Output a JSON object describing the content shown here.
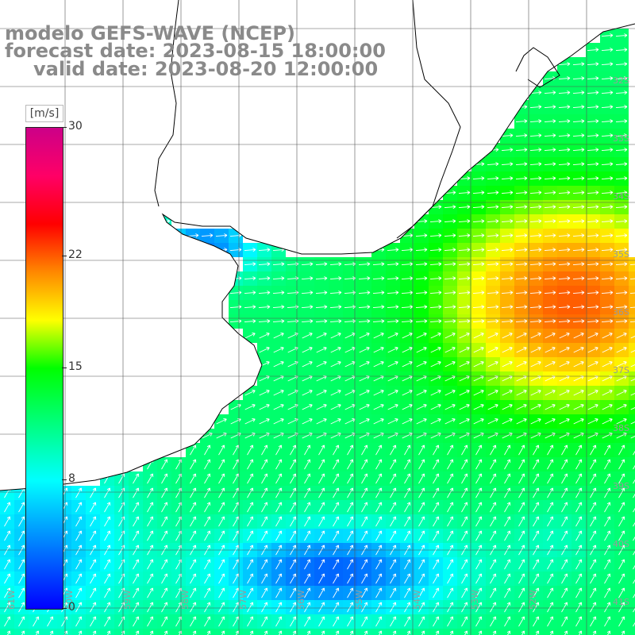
{
  "title": {
    "line1": "modelo GEFS-WAVE (NCEP)",
    "line2": "forecast date: 2023-08-15 18:00:00",
    "line3": "valid date: 2023-08-20 12:00:00"
  },
  "legend": {
    "unit": "[m/s]",
    "ticks": [
      {
        "label": "30",
        "value": 30
      },
      {
        "label": "22",
        "value": 22
      },
      {
        "label": "15",
        "value": 15
      },
      {
        "label": "8",
        "value": 8
      },
      {
        "label": "0",
        "value": 0
      }
    ],
    "range": [
      0,
      30
    ]
  },
  "map": {
    "lat_labels": [
      "32S",
      "33S",
      "34S",
      "35S",
      "36S",
      "37S",
      "38S",
      "39S",
      "40S",
      "41S"
    ],
    "lon_labels": [
      "61W",
      "60W",
      "59W",
      "58W",
      "57W",
      "56W",
      "55W",
      "54W",
      "53W",
      "52W"
    ],
    "colors": {
      "land": "#ffffff",
      "coast": "#000000",
      "grid": "#555555",
      "arrow": "#ffffff"
    }
  }
}
